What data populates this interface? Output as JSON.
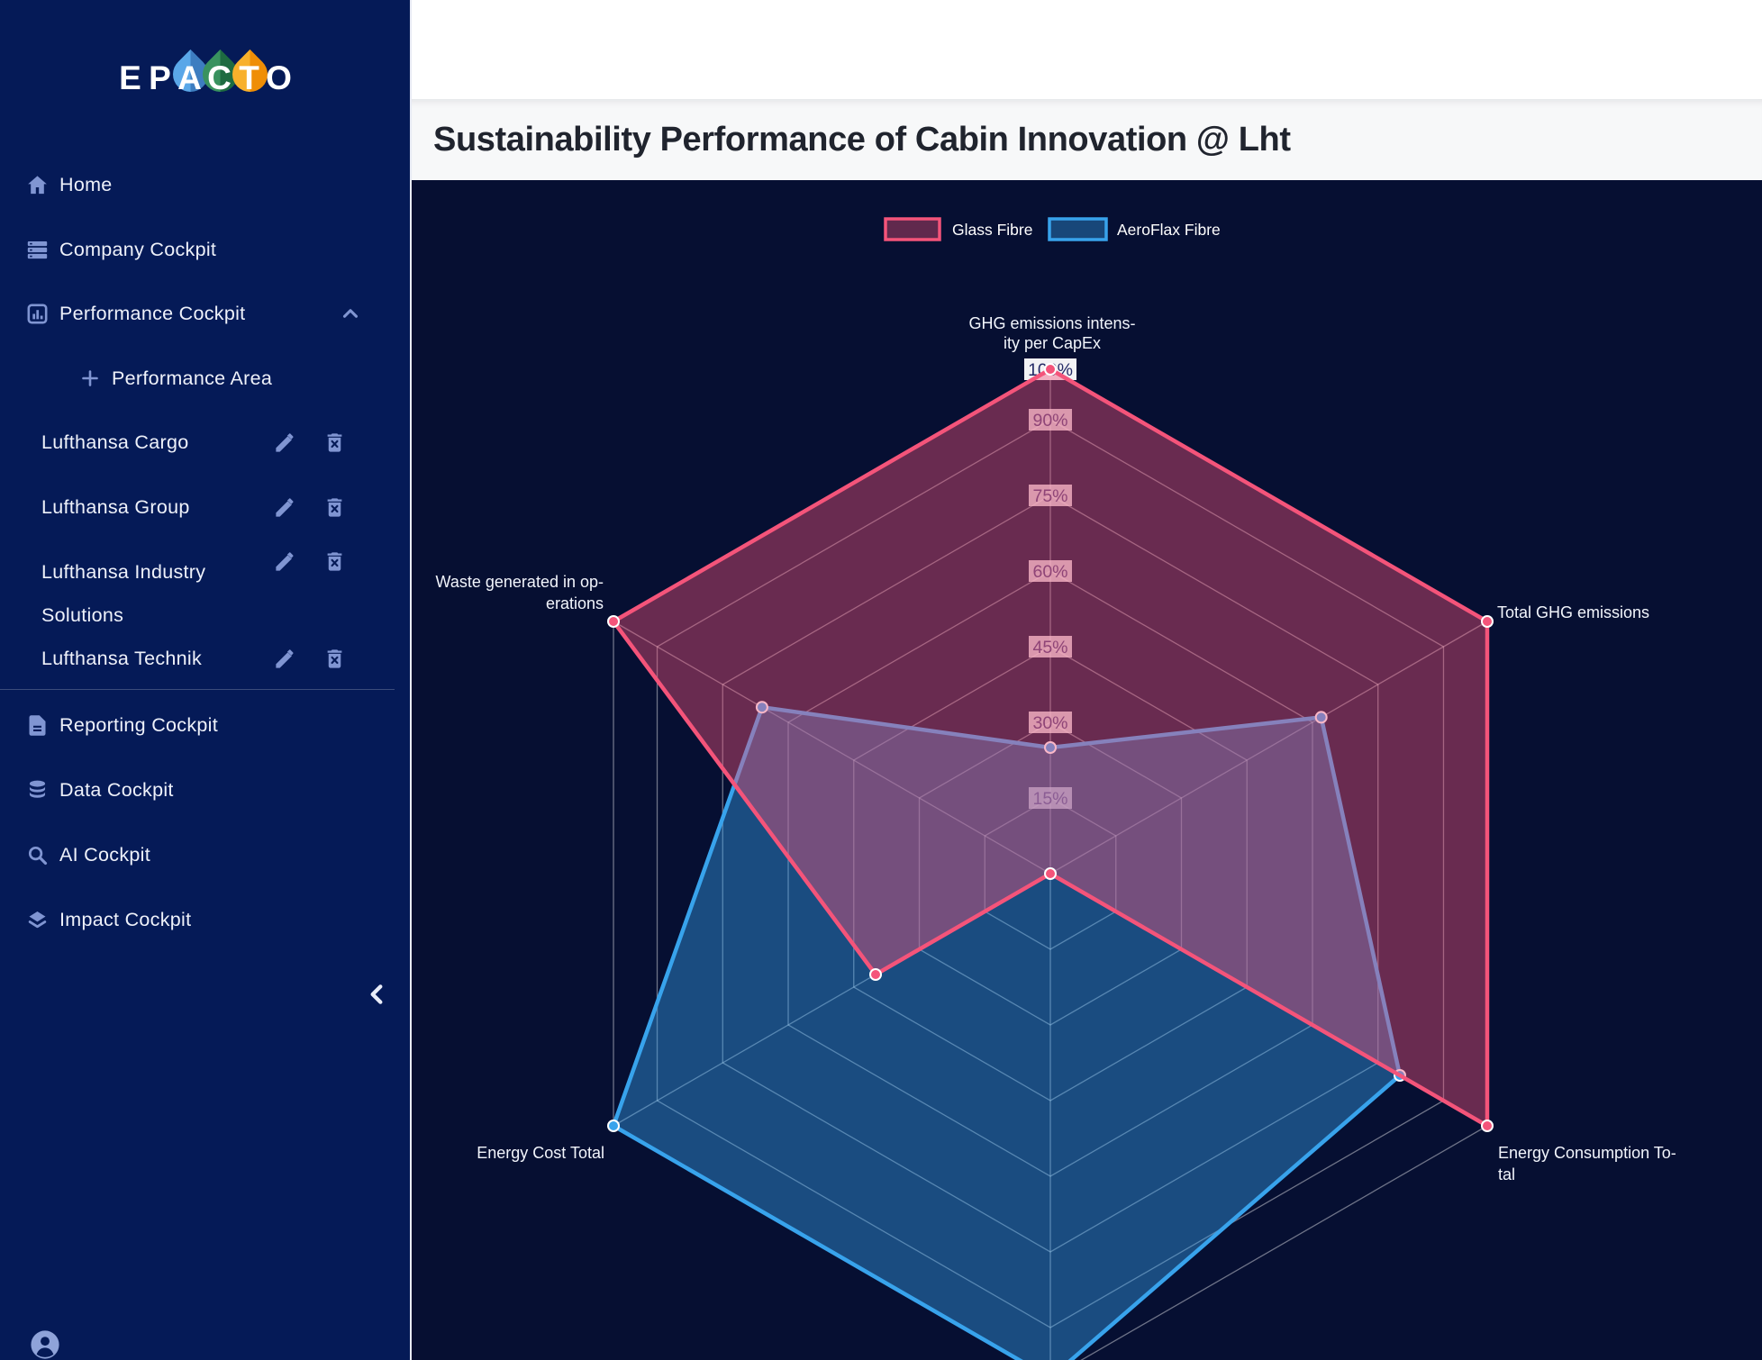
{
  "theme": {
    "sidebar_bg": "#051a57",
    "chart_bg": "#060f32",
    "title_band_bg": "#f7f8f9",
    "accent_pink": "#f4547a",
    "accent_blue": "#38a3ec",
    "icon_color": "#8095d2",
    "droplet_blue": "#4a90d9",
    "droplet_green": "#2e7d4f",
    "droplet_orange": "#f5a623"
  },
  "sidebar": {
    "logo": {
      "text": "EPACTO",
      "letters": [
        {
          "ch": "E"
        },
        {
          "ch": "P"
        },
        {
          "ch": "A",
          "droplet_light": "#5aa7e8",
          "droplet_dark": "#3d7dc0"
        },
        {
          "ch": "C",
          "droplet_light": "#39925f",
          "droplet_dark": "#1e6b41"
        },
        {
          "ch": "T",
          "droplet_light": "#f8b02b",
          "droplet_dark": "#ef8e06"
        },
        {
          "ch": "O"
        }
      ]
    },
    "items": [
      {
        "id": "home",
        "label": "Home",
        "icon": "home-icon"
      },
      {
        "id": "company-cockpit",
        "label": "Company Cockpit",
        "icon": "company-cockpit-icon"
      },
      {
        "id": "performance-cockpit",
        "label": "Performance Cockpit",
        "icon": "performance-cockpit-icon",
        "trailing_icon": "chevron-up-icon",
        "expanded": true
      },
      {
        "id": "performance-area",
        "label": "Performance Area",
        "icon": "plus-icon",
        "indent": true
      },
      {
        "id": "lufthansa-cargo",
        "label": "Lufthansa Cargo",
        "entity": true,
        "actions": [
          "pencil-icon",
          "trash-icon"
        ]
      },
      {
        "id": "lufthansa-group",
        "label": "Lufthansa Group",
        "entity": true,
        "actions": [
          "pencil-icon",
          "trash-icon"
        ]
      },
      {
        "id": "lufthansa-industry-solutions",
        "label": "Lufthansa Industry Solutions",
        "entity": true,
        "actions": [
          "pencil-icon",
          "trash-icon"
        ]
      },
      {
        "id": "lufthansa-technik",
        "label": "Lufthansa Technik",
        "entity": true,
        "actions": [
          "pencil-icon",
          "trash-icon"
        ]
      },
      {
        "id": "divider",
        "divider": true
      },
      {
        "id": "reporting-cockpit",
        "label": "Reporting Cockpit",
        "icon": "reporting-cockpit-icon"
      },
      {
        "id": "data-cockpit",
        "label": "Data Cockpit",
        "icon": "data-cockpit-icon"
      },
      {
        "id": "ai-cockpit",
        "label": "AI Cockpit",
        "icon": "ai-cockpit-icon"
      },
      {
        "id": "impact-cockpit",
        "label": "Impact Cockpit",
        "icon": "impact-cockpit-icon"
      }
    ],
    "collapse_icon": "chevron-left-icon",
    "avatar_icon": "avatar-icon"
  },
  "header": {
    "title": "Sustainability Performance of Cabin Innovation @ Lht"
  },
  "chart_data": {
    "type": "radar",
    "title": "",
    "legend_position": "top",
    "grid": true,
    "rmax": 100,
    "axes": [
      "GHG emissions intensity per CapEx",
      "Total GHG emissions",
      "Energy Consumption Total",
      "",
      "Energy Cost Total",
      "Waste generated in operations"
    ],
    "axis_label_lines": [
      [
        "GHG emissions intens-",
        "ity per CapEx"
      ],
      [
        "Total GHG emissions"
      ],
      [
        "Energy Consumption To-",
        "tal"
      ],
      [],
      [
        "Energy Cost Total"
      ],
      [
        "Waste generated in op-",
        "erations"
      ]
    ],
    "tick_labels": [
      "100%",
      "90%",
      "75%",
      "60%",
      "45%",
      "30%",
      "15%"
    ],
    "tick_values": [
      100,
      90,
      75,
      60,
      45,
      30,
      15
    ],
    "series": [
      {
        "name": "Glass Fibre",
        "color": "#f4547a",
        "fill_opacity": 0.42,
        "values": [
          100,
          100,
          100,
          0,
          40,
          100
        ]
      },
      {
        "name": "AeroFlax Fibre",
        "color": "#38a3ec",
        "fill_opacity": 0.42,
        "values": [
          25,
          62,
          80,
          100,
          100,
          66
        ]
      }
    ]
  }
}
